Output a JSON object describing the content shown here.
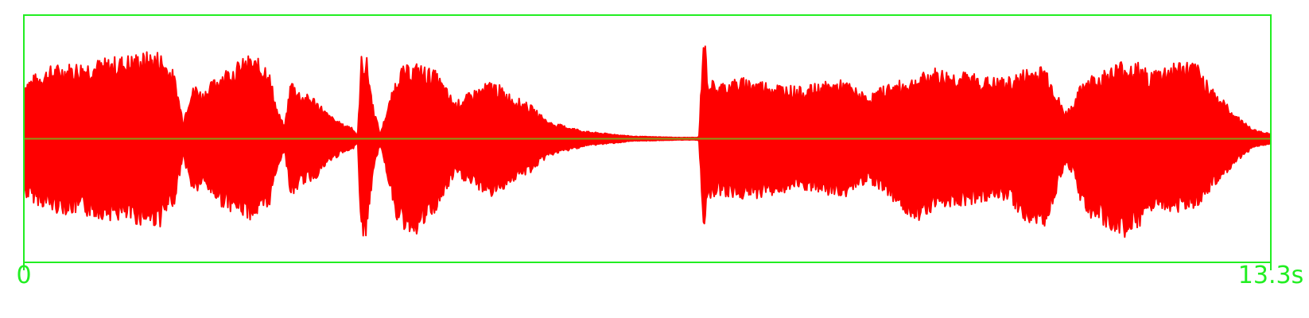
{
  "chart_data": {
    "type": "area",
    "title": "",
    "xlabel": "",
    "ylabel": "",
    "xlim": [
      0,
      13.3
    ],
    "ylim": [
      -1,
      1
    ],
    "grid": false,
    "legend": "none",
    "tick_labels": {
      "start": "0",
      "end": "13.3s"
    },
    "colors": {
      "waveform": "#ff0000",
      "axis_frame": "#22ee22",
      "tick_text": "#22ee22",
      "center_line": "#8a9a1a"
    },
    "series": [
      {
        "x": [
          0.0,
          0.3,
          0.6,
          0.9,
          1.2,
          1.45,
          1.6,
          1.7,
          1.78,
          1.84,
          1.9,
          2.1,
          2.4,
          2.6,
          2.7,
          2.78,
          2.85,
          2.95,
          3.1,
          3.25,
          3.4,
          3.5,
          3.56,
          3.6,
          3.66,
          3.72,
          3.8,
          4.0,
          4.2,
          4.4,
          4.6,
          4.8,
          5.0,
          5.2,
          5.4,
          5.6,
          5.7,
          6.0,
          6.5,
          7.0,
          7.2,
          7.25,
          7.3,
          7.4,
          7.5,
          7.7,
          8.0,
          8.3,
          8.5,
          8.75,
          9.0,
          9.2,
          9.4,
          9.55,
          9.7,
          9.9,
          10.1,
          10.3,
          10.5,
          10.7,
          10.9,
          11.1,
          11.2,
          11.3,
          11.5,
          11.7,
          11.9,
          12.0,
          12.1,
          12.3,
          12.5,
          12.7,
          12.9,
          13.1,
          13.3
        ],
        "upper": [
          0.48,
          0.6,
          0.63,
          0.66,
          0.7,
          0.72,
          0.55,
          0.15,
          0.4,
          0.45,
          0.38,
          0.55,
          0.68,
          0.62,
          0.25,
          0.1,
          0.5,
          0.38,
          0.34,
          0.2,
          0.12,
          0.1,
          0.02,
          0.68,
          0.66,
          0.3,
          0.04,
          0.58,
          0.62,
          0.55,
          0.3,
          0.4,
          0.48,
          0.36,
          0.28,
          0.14,
          0.12,
          0.06,
          0.02,
          0.01,
          0.01,
          0.9,
          0.5,
          0.45,
          0.48,
          0.5,
          0.46,
          0.42,
          0.46,
          0.48,
          0.35,
          0.45,
          0.48,
          0.52,
          0.58,
          0.55,
          0.54,
          0.5,
          0.5,
          0.58,
          0.6,
          0.22,
          0.3,
          0.5,
          0.55,
          0.64,
          0.62,
          0.55,
          0.58,
          0.64,
          0.62,
          0.4,
          0.22,
          0.08,
          0.04
        ],
        "lower": [
          -0.48,
          -0.6,
          -0.63,
          -0.66,
          -0.7,
          -0.72,
          -0.55,
          -0.15,
          -0.4,
          -0.45,
          -0.38,
          -0.55,
          -0.66,
          -0.62,
          -0.25,
          -0.1,
          -0.5,
          -0.38,
          -0.34,
          -0.2,
          -0.12,
          -0.1,
          -0.02,
          -0.82,
          -0.8,
          -0.3,
          -0.04,
          -0.74,
          -0.78,
          -0.6,
          -0.3,
          -0.4,
          -0.48,
          -0.36,
          -0.28,
          -0.14,
          -0.12,
          -0.06,
          -0.02,
          -0.01,
          -0.01,
          -0.74,
          -0.5,
          -0.45,
          -0.48,
          -0.5,
          -0.46,
          -0.42,
          -0.46,
          -0.48,
          -0.35,
          -0.45,
          -0.62,
          -0.66,
          -0.58,
          -0.55,
          -0.54,
          -0.5,
          -0.5,
          -0.7,
          -0.72,
          -0.22,
          -0.3,
          -0.6,
          -0.72,
          -0.8,
          -0.78,
          -0.62,
          -0.58,
          -0.6,
          -0.56,
          -0.4,
          -0.22,
          -0.08,
          -0.04
        ]
      }
    ]
  }
}
